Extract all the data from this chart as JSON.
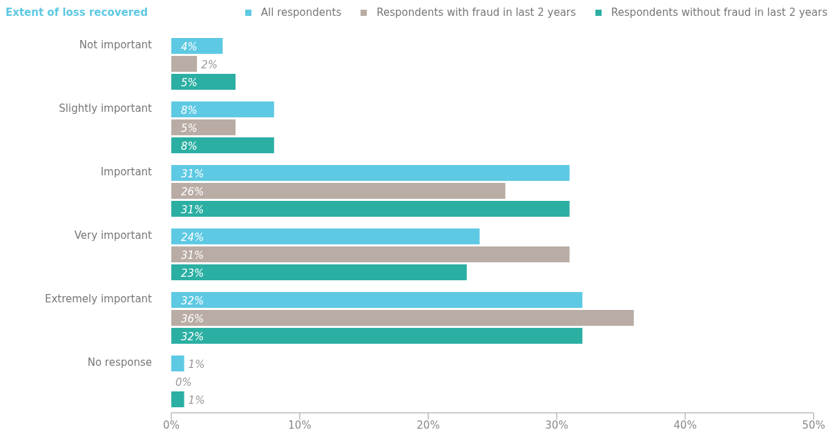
{
  "chart_data": {
    "type": "bar",
    "orientation": "horizontal",
    "title": "Extent of loss recovered",
    "categories": [
      "Not important",
      "Slightly important",
      "Important",
      "Very important",
      "Extremely important",
      "No response"
    ],
    "series": [
      {
        "name": "All respondents",
        "color": "#5ec9e3",
        "values": [
          4,
          8,
          31,
          24,
          32,
          1
        ],
        "value_labels": [
          "4%",
          "8%",
          "31%",
          "24%",
          "32%",
          "1%"
        ]
      },
      {
        "name": "Respondents with fraud in last 2 years",
        "color": "#b8aca4",
        "values": [
          2,
          5,
          26,
          31,
          36,
          0
        ],
        "value_labels": [
          "2%",
          "5%",
          "26%",
          "31%",
          "36%",
          "0%"
        ]
      },
      {
        "name": "Respondents without fraud in last 2 years",
        "color": "#2bafa3",
        "values": [
          5,
          8,
          31,
          23,
          32,
          1
        ],
        "value_labels": [
          "5%",
          "8%",
          "31%",
          "23%",
          "32%",
          "1%"
        ]
      }
    ],
    "xlim": [
      0,
      50
    ],
    "xticks": [
      {
        "value": 0,
        "label": "0%"
      },
      {
        "value": 10,
        "label": "10%"
      },
      {
        "value": 20,
        "label": "20%"
      },
      {
        "value": 30,
        "label": "30%"
      },
      {
        "value": 40,
        "label": "40%"
      },
      {
        "value": 50,
        "label": "50%"
      }
    ],
    "legend": "top right",
    "grid": false
  }
}
